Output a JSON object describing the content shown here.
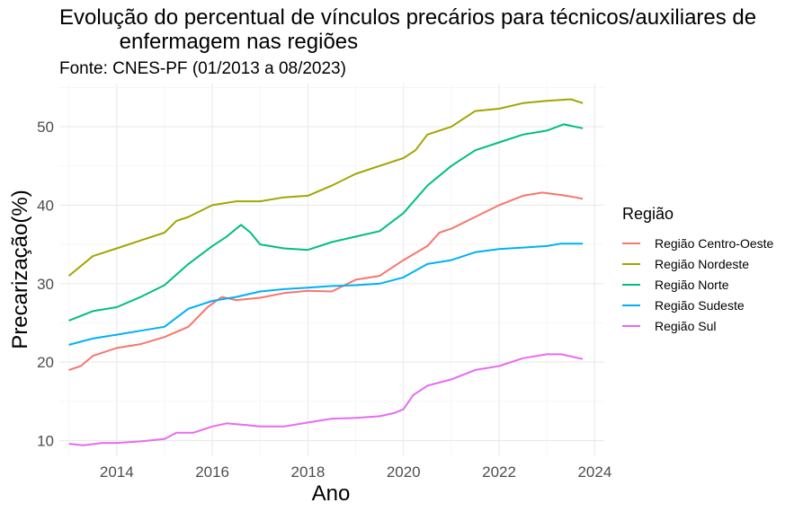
{
  "chart_data": {
    "type": "line",
    "title": "Evolução do percentual de vínculos precários para técnicos/auxiliares de\n          enfermagem nas regiões",
    "subtitle": "Fonte: CNES-PF (01/2013 a 08/2023)",
    "xlabel": "Ano",
    "ylabel": "Precarização(%)",
    "legend_title": "Região",
    "legend_position": "right",
    "grid": true,
    "xlim": [
      2012.8,
      2024.2
    ],
    "ylim": [
      8,
      55.5
    ],
    "xticks": [
      2014,
      2016,
      2018,
      2020,
      2022,
      2024
    ],
    "yticks": [
      10,
      20,
      30,
      40,
      50
    ],
    "series": [
      {
        "name": "Região Centro-Oeste",
        "color": "#F8766D",
        "points": [
          [
            2013.0,
            19.0
          ],
          [
            2013.25,
            19.5
          ],
          [
            2013.5,
            20.8
          ],
          [
            2014.0,
            21.8
          ],
          [
            2014.5,
            22.3
          ],
          [
            2015.0,
            23.2
          ],
          [
            2015.5,
            24.5
          ],
          [
            2015.9,
            27.0
          ],
          [
            2016.2,
            28.3
          ],
          [
            2016.5,
            27.9
          ],
          [
            2017.0,
            28.2
          ],
          [
            2017.5,
            28.8
          ],
          [
            2018.0,
            29.1
          ],
          [
            2018.5,
            29.0
          ],
          [
            2019.0,
            30.5
          ],
          [
            2019.5,
            31.0
          ],
          [
            2020.0,
            33.0
          ],
          [
            2020.5,
            34.8
          ],
          [
            2020.75,
            36.5
          ],
          [
            2021.0,
            37.0
          ],
          [
            2021.5,
            38.5
          ],
          [
            2022.0,
            40.0
          ],
          [
            2022.5,
            41.2
          ],
          [
            2022.9,
            41.6
          ],
          [
            2023.3,
            41.3
          ],
          [
            2023.6,
            41.0
          ],
          [
            2023.75,
            40.8
          ]
        ]
      },
      {
        "name": "Região Nordeste",
        "color": "#A3A500",
        "points": [
          [
            2013.0,
            31.0
          ],
          [
            2013.5,
            33.5
          ],
          [
            2014.0,
            34.5
          ],
          [
            2014.5,
            35.5
          ],
          [
            2015.0,
            36.5
          ],
          [
            2015.25,
            38.0
          ],
          [
            2015.5,
            38.5
          ],
          [
            2016.0,
            40.0
          ],
          [
            2016.5,
            40.5
          ],
          [
            2017.0,
            40.5
          ],
          [
            2017.5,
            41.0
          ],
          [
            2018.0,
            41.2
          ],
          [
            2018.5,
            42.5
          ],
          [
            2019.0,
            44.0
          ],
          [
            2019.5,
            45.0
          ],
          [
            2020.0,
            46.0
          ],
          [
            2020.25,
            47.0
          ],
          [
            2020.5,
            49.0
          ],
          [
            2021.0,
            50.0
          ],
          [
            2021.5,
            52.0
          ],
          [
            2022.0,
            52.3
          ],
          [
            2022.5,
            53.0
          ],
          [
            2023.0,
            53.3
          ],
          [
            2023.5,
            53.5
          ],
          [
            2023.75,
            53.0
          ]
        ]
      },
      {
        "name": "Região Norte",
        "color": "#00BF7D",
        "points": [
          [
            2013.0,
            25.3
          ],
          [
            2013.5,
            26.5
          ],
          [
            2014.0,
            27.0
          ],
          [
            2014.5,
            28.3
          ],
          [
            2015.0,
            29.8
          ],
          [
            2015.5,
            32.5
          ],
          [
            2016.0,
            34.8
          ],
          [
            2016.3,
            36.0
          ],
          [
            2016.6,
            37.5
          ],
          [
            2016.8,
            36.5
          ],
          [
            2017.0,
            35.0
          ],
          [
            2017.5,
            34.5
          ],
          [
            2018.0,
            34.3
          ],
          [
            2018.5,
            35.3
          ],
          [
            2019.0,
            36.0
          ],
          [
            2019.5,
            36.7
          ],
          [
            2020.0,
            39.0
          ],
          [
            2020.5,
            42.5
          ],
          [
            2021.0,
            45.0
          ],
          [
            2021.5,
            47.0
          ],
          [
            2022.0,
            48.0
          ],
          [
            2022.5,
            49.0
          ],
          [
            2023.0,
            49.5
          ],
          [
            2023.35,
            50.3
          ],
          [
            2023.75,
            49.8
          ]
        ]
      },
      {
        "name": "Região Sudeste",
        "color": "#00B0F6",
        "points": [
          [
            2013.0,
            22.2
          ],
          [
            2013.5,
            23.0
          ],
          [
            2014.0,
            23.5
          ],
          [
            2014.5,
            24.0
          ],
          [
            2015.0,
            24.5
          ],
          [
            2015.5,
            26.8
          ],
          [
            2016.0,
            27.8
          ],
          [
            2016.5,
            28.3
          ],
          [
            2017.0,
            29.0
          ],
          [
            2017.5,
            29.3
          ],
          [
            2018.0,
            29.5
          ],
          [
            2018.5,
            29.7
          ],
          [
            2019.0,
            29.8
          ],
          [
            2019.5,
            30.0
          ],
          [
            2020.0,
            30.8
          ],
          [
            2020.5,
            32.5
          ],
          [
            2021.0,
            33.0
          ],
          [
            2021.5,
            34.0
          ],
          [
            2022.0,
            34.4
          ],
          [
            2022.5,
            34.6
          ],
          [
            2023.0,
            34.8
          ],
          [
            2023.3,
            35.1
          ],
          [
            2023.75,
            35.1
          ]
        ]
      },
      {
        "name": "Região Sul",
        "color": "#E76BF3",
        "points": [
          [
            2013.0,
            9.6
          ],
          [
            2013.3,
            9.4
          ],
          [
            2013.7,
            9.7
          ],
          [
            2014.0,
            9.7
          ],
          [
            2014.5,
            9.9
          ],
          [
            2015.0,
            10.2
          ],
          [
            2015.25,
            11.0
          ],
          [
            2015.6,
            11.0
          ],
          [
            2016.0,
            11.8
          ],
          [
            2016.3,
            12.2
          ],
          [
            2016.7,
            12.0
          ],
          [
            2017.0,
            11.8
          ],
          [
            2017.5,
            11.8
          ],
          [
            2018.0,
            12.3
          ],
          [
            2018.5,
            12.8
          ],
          [
            2019.0,
            12.9
          ],
          [
            2019.5,
            13.1
          ],
          [
            2019.8,
            13.5
          ],
          [
            2020.0,
            14.0
          ],
          [
            2020.2,
            15.8
          ],
          [
            2020.5,
            17.0
          ],
          [
            2021.0,
            17.8
          ],
          [
            2021.5,
            19.0
          ],
          [
            2022.0,
            19.5
          ],
          [
            2022.5,
            20.5
          ],
          [
            2023.0,
            21.0
          ],
          [
            2023.3,
            21.0
          ],
          [
            2023.75,
            20.4
          ]
        ]
      }
    ]
  }
}
